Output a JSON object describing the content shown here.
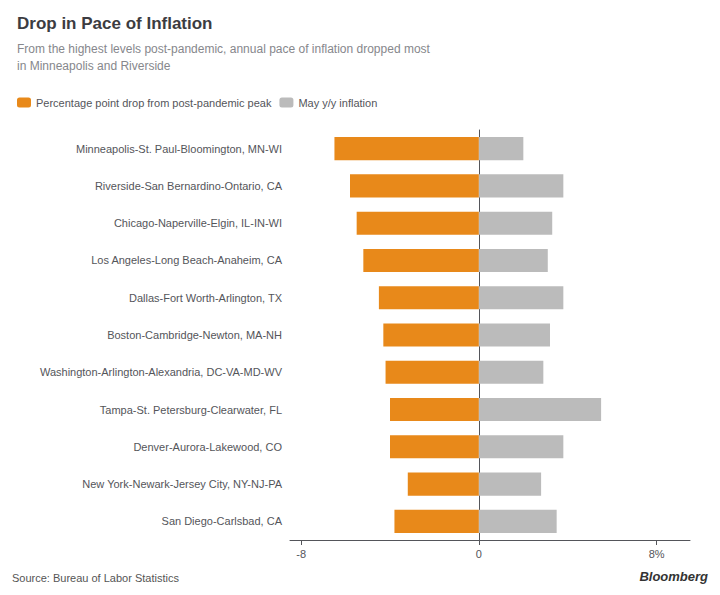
{
  "chart_data": {
    "type": "bar",
    "orientation": "horizontal",
    "title": "Drop in Pace of Inflation",
    "subtitle": "From the highest levels post-pandemic, annual pace of inflation dropped most\nin Minneapolis and Riverside",
    "annotations": [
      "Source: Bureau of Labor Statistics",
      "Bloomberg"
    ],
    "categories": [
      "Minneapolis-St. Paul-Bloomington, MN-WI",
      "Riverside-San Bernardino-Ontario, CA",
      "Chicago-Naperville-Elgin, IL-IN-WI",
      "Los Angeles-Long Beach-Anaheim, CA",
      "Dallas-Fort Worth-Arlington, TX",
      "Boston-Cambridge-Newton, MA-NH",
      "Washington-Arlington-Alexandria, DC-VA-MD-WV",
      "Tampa-St. Petersburg-Clearwater, FL",
      "Denver-Aurora-Lakewood, CO",
      "New York-Newark-Jersey City, NY-NJ-PA",
      "San Diego-Carlsbad, CA"
    ],
    "series": [
      {
        "name": "Percentage point drop from post-pandemic peak",
        "color": "#E8891A",
        "values": [
          -6.5,
          -5.8,
          -5.5,
          -5.2,
          -4.5,
          -4.3,
          -4.2,
          -4.0,
          -4.0,
          -3.2,
          -3.8
        ]
      },
      {
        "name": "May y/y inflation",
        "color": "#BBBBBB",
        "values": [
          2.0,
          3.8,
          3.3,
          3.1,
          3.8,
          3.2,
          2.9,
          5.5,
          3.8,
          2.8,
          3.5
        ]
      }
    ],
    "xlim": [
      -8.5,
      9.5
    ],
    "xticks": [
      -8,
      0,
      {
        "value": 8,
        "label": "8%"
      }
    ],
    "grid": false,
    "legend": "upper left"
  }
}
